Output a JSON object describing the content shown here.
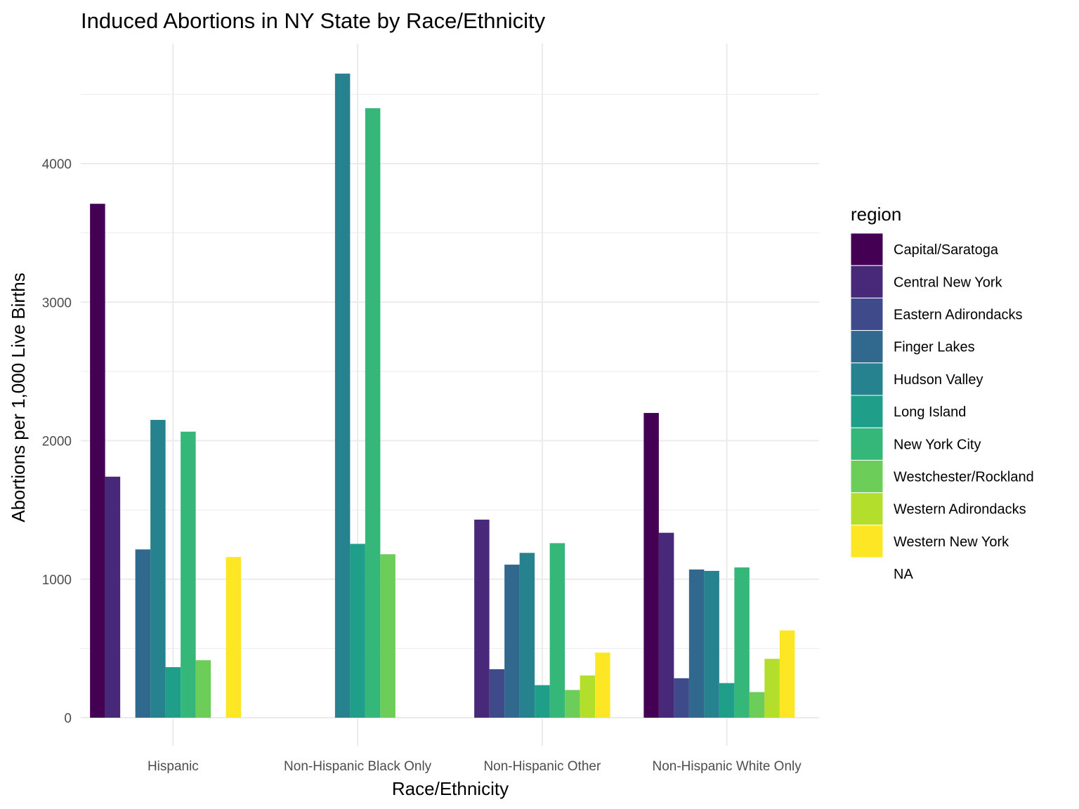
{
  "chart_data": {
    "type": "bar",
    "title": "Induced Abortions in NY State by Race/Ethnicity",
    "xlabel": "Race/Ethnicity",
    "ylabel": "Abortions per 1,000 Live Births",
    "categories": [
      "Hispanic",
      "Non-Hispanic Black Only",
      "Non-Hispanic Other",
      "Non-Hispanic White Only"
    ],
    "ylim": [
      -200,
      4800
    ],
    "yticks": [
      0,
      1000,
      2000,
      3000,
      4000
    ],
    "grid": true,
    "legend": {
      "title": "region",
      "position": "right"
    },
    "series": [
      {
        "name": "Capital/Saratoga",
        "color": "#440154",
        "values": [
          3710,
          null,
          null,
          2200
        ]
      },
      {
        "name": "Central New York",
        "color": "#482878",
        "values": [
          1740,
          null,
          1430,
          1335
        ]
      },
      {
        "name": "Eastern Adirondacks",
        "color": "#3E4A89",
        "values": [
          null,
          null,
          350,
          285
        ]
      },
      {
        "name": "Finger Lakes",
        "color": "#31688E",
        "values": [
          1215,
          null,
          1105,
          1070
        ]
      },
      {
        "name": "Hudson Valley",
        "color": "#26828E",
        "values": [
          2150,
          4650,
          1190,
          1060
        ]
      },
      {
        "name": "Long Island",
        "color": "#1F9E89",
        "values": [
          365,
          1255,
          235,
          250
        ]
      },
      {
        "name": "New York City",
        "color": "#35B779",
        "values": [
          2065,
          4400,
          1260,
          1085
        ]
      },
      {
        "name": "Westchester/Rockland",
        "color": "#6DCD59",
        "values": [
          415,
          1180,
          200,
          185
        ]
      },
      {
        "name": "Western Adirondacks",
        "color": "#B4DE2C",
        "values": [
          null,
          null,
          305,
          425
        ]
      },
      {
        "name": "Western New York",
        "color": "#FDE725",
        "values": [
          1160,
          null,
          470,
          630
        ]
      },
      {
        "name": "NA",
        "color": "#FFFFFF",
        "values": [
          null,
          null,
          null,
          null
        ]
      }
    ]
  }
}
